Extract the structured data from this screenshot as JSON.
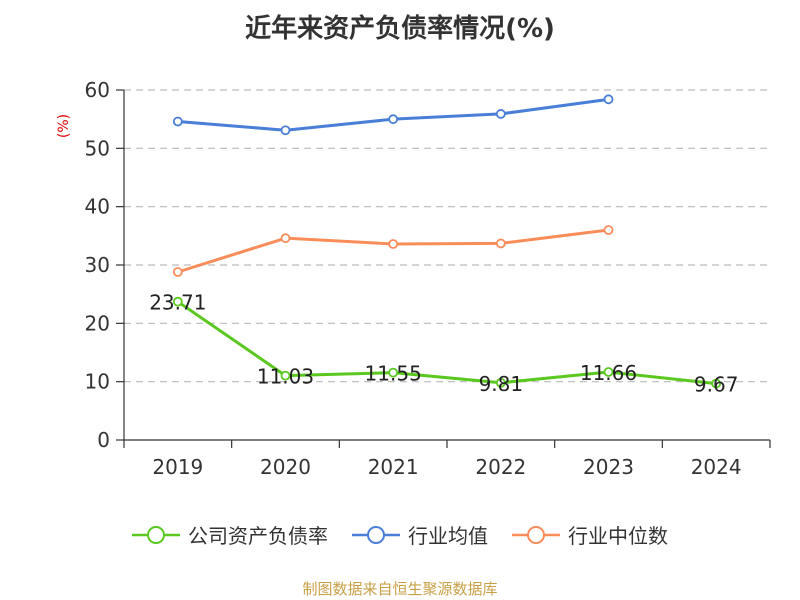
{
  "chart_data": {
    "type": "line",
    "title": "近年来资产负债率情况(%)",
    "ylabel": "(%)",
    "xlabel": "",
    "categories": [
      "2019",
      "2020",
      "2021",
      "2022",
      "2023",
      "2024"
    ],
    "ylim": [
      0,
      60
    ],
    "yticks": [
      0,
      10,
      20,
      30,
      40,
      50,
      60
    ],
    "grid": true,
    "legend_position": "bottom",
    "series": [
      {
        "name": "公司资产负债率",
        "color": "#5ac81e",
        "values": [
          23.71,
          11.03,
          11.55,
          9.81,
          11.66,
          9.67
        ],
        "labels": [
          "23.71",
          "11.03",
          "11.55",
          "9.81",
          "11.66",
          "9.67"
        ]
      },
      {
        "name": "行业均值",
        "color": "#4a7fd8",
        "values": [
          54.6,
          53.1,
          55.0,
          55.9,
          58.4,
          null
        ],
        "labels": null
      },
      {
        "name": "行业中位数",
        "color": "#f98d5a",
        "values": [
          28.8,
          34.6,
          33.6,
          33.7,
          36.0,
          null
        ],
        "labels": null
      }
    ]
  },
  "source": {
    "text": "制图数据来自恒生聚源数据库",
    "color": "#c9a046"
  }
}
